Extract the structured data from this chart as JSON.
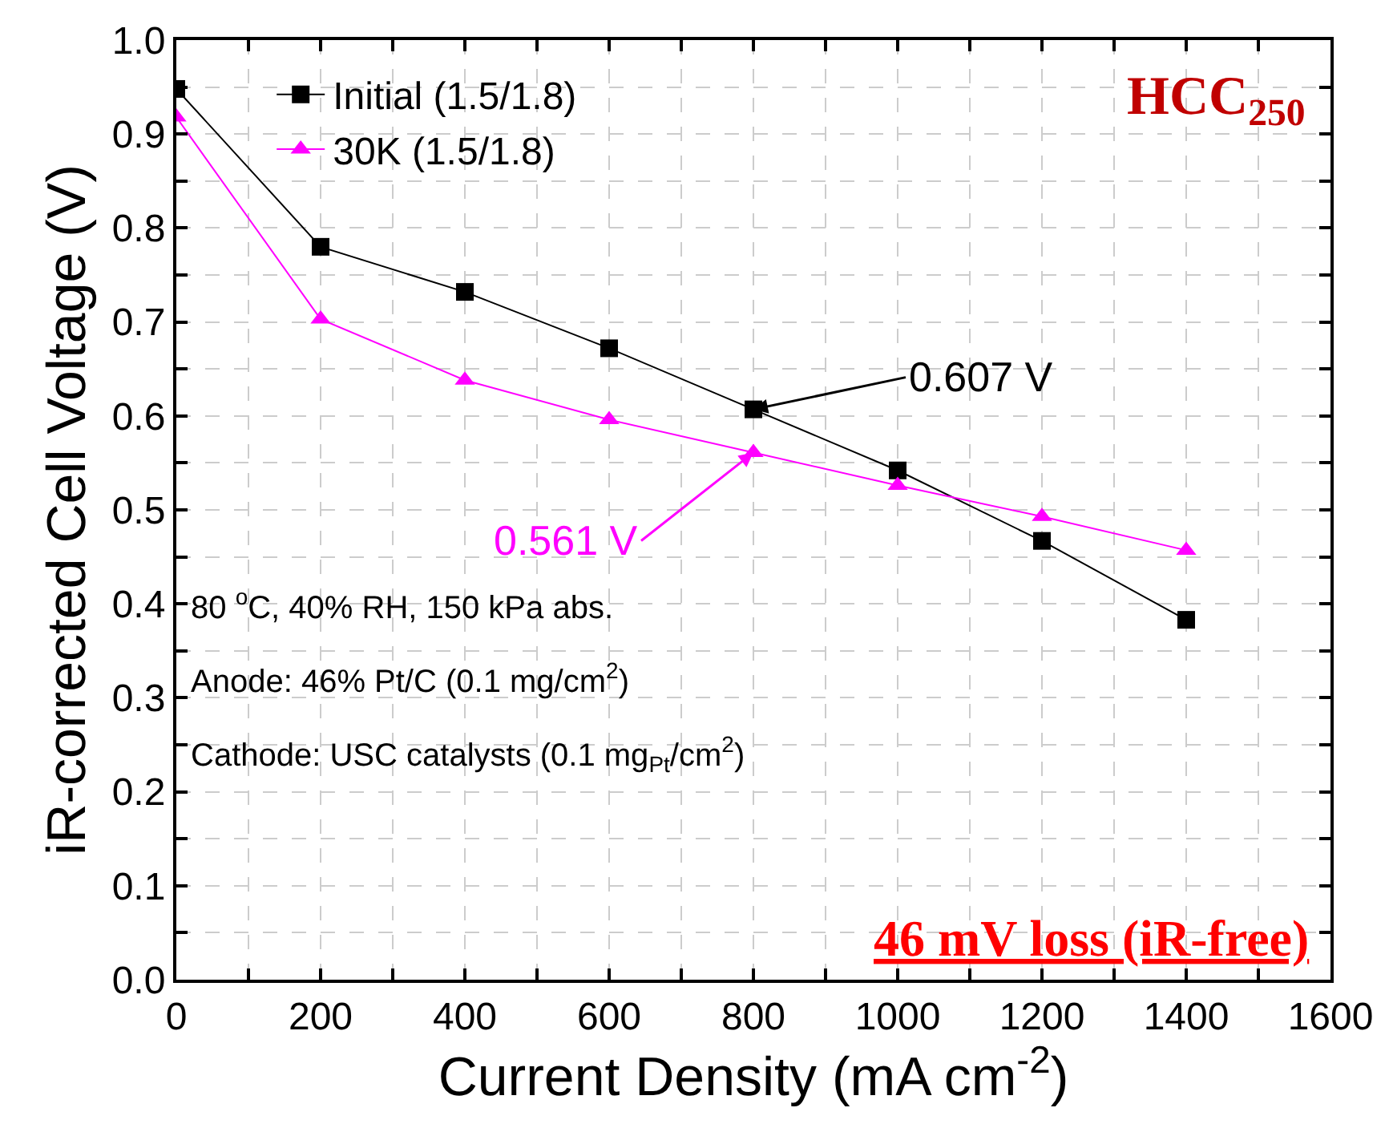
{
  "chart_data": {
    "type": "line",
    "xlabel": "Current Density (mA cm$^{-2}$)",
    "ylabel": "iR-corrected Cell Voltage (V)",
    "x": [
      0,
      200,
      400,
      600,
      800,
      1000,
      1200,
      1400
    ],
    "series": [
      {
        "name": "Initial (1.5/1.8)",
        "color": "#000000",
        "marker": "square",
        "values": [
          0.948,
          0.78,
          0.732,
          0.672,
          0.607,
          0.542,
          0.467,
          0.383
        ]
      },
      {
        "name": "30K (1.5/1.8)",
        "color": "#ff00ff",
        "marker": "triangle",
        "values": [
          0.918,
          0.703,
          0.638,
          0.596,
          0.561,
          0.526,
          0.493,
          0.457
        ]
      }
    ],
    "xlim": [
      0,
      1600
    ],
    "ylim": [
      0,
      1.0
    ],
    "xticks": [
      0,
      {
        "value": 100,
        "label": null
      },
      200,
      {
        "value": 300,
        "label": null
      },
      400,
      {
        "value": 500,
        "label": null
      },
      600,
      {
        "value": 700,
        "label": null
      },
      800,
      {
        "value": 900,
        "label": null
      },
      1000,
      {
        "value": 1100,
        "label": null
      },
      1200,
      {
        "value": 1300,
        "label": null
      },
      1400,
      {
        "value": 1500,
        "label": null
      },
      1600
    ],
    "yticks": [
      {
        "value": 0,
        "label": "0.0"
      },
      {
        "value": 0.05,
        "label": null
      },
      0.1,
      {
        "value": 0.15,
        "label": null
      },
      0.2,
      {
        "value": 0.25,
        "label": null
      },
      0.3,
      {
        "value": 0.35,
        "label": null
      },
      0.4,
      {
        "value": 0.45,
        "label": null
      },
      0.5,
      {
        "value": 0.55,
        "label": null
      },
      0.6,
      {
        "value": 0.65,
        "label": null
      },
      0.7,
      {
        "value": 0.75,
        "label": null
      },
      0.8,
      {
        "value": 0.85,
        "label": null
      },
      0.9,
      {
        "value": 0.95,
        "label": null
      },
      {
        "value": 1.0,
        "label": "1.0"
      }
    ],
    "grid": true,
    "legend": "top left",
    "line_style": "solid",
    "annotations": [
      {
        "text": "0.607 V",
        "x": 800,
        "y": 0.607
      },
      {
        "text": "0.561 V",
        "x": 800,
        "y": 0.561
      },
      "HCC$_{250}$",
      "80 $^{o}$C, 40% RH, 150 kPa abs.",
      "Anode: 46% Pt/C (0.1 mg/cm$^{2}$)",
      "Cathode: USC catalysts (0.1 mg$_{Pt}$/cm$^{2}$)",
      "46 mV loss (iR-free)"
    ]
  }
}
